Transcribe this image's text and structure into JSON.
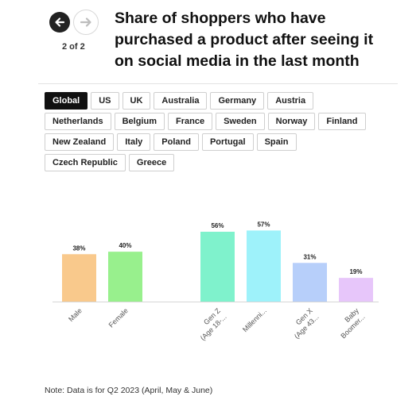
{
  "header": {
    "title": "Share of shoppers who have purchased a product after seeing it on social media in the last month",
    "page_indicator": "2 of 2",
    "prev_icon": "arrow-left-icon",
    "next_icon": "arrow-right-icon"
  },
  "tabs": [
    [
      "Global",
      "US",
      "UK",
      "Australia",
      "Germany",
      "Austria"
    ],
    [
      "Netherlands",
      "Belgium",
      "France",
      "Sweden",
      "Norway",
      "Finland"
    ],
    [
      "New Zealand",
      "Italy",
      "Poland",
      "Portugal",
      "Spain"
    ],
    [
      "Czech Republic",
      "Greece"
    ]
  ],
  "active_tab": "Global",
  "chart_data": {
    "type": "bar",
    "title": "",
    "xlabel": "",
    "ylabel": "",
    "ylim": [
      0,
      70
    ],
    "grid": false,
    "categories": [
      "Male",
      "Female",
      "",
      "Gen Z (Age 18-...",
      "Millenni...",
      "Gen X (Age 43...",
      "Baby Boomer..."
    ],
    "values": [
      38,
      40,
      null,
      56,
      57,
      31,
      19
    ],
    "data_labels": [
      "38%",
      "40%",
      "",
      "56%",
      "57%",
      "31%",
      "19%"
    ],
    "colors": [
      "#f9c98c",
      "#98f08d",
      "",
      "#7ff2cc",
      "#9ef2fa",
      "#b7cffa",
      "#e7c6fa"
    ]
  },
  "note": "Note: Data is for Q2 2023 (April, May & June)"
}
